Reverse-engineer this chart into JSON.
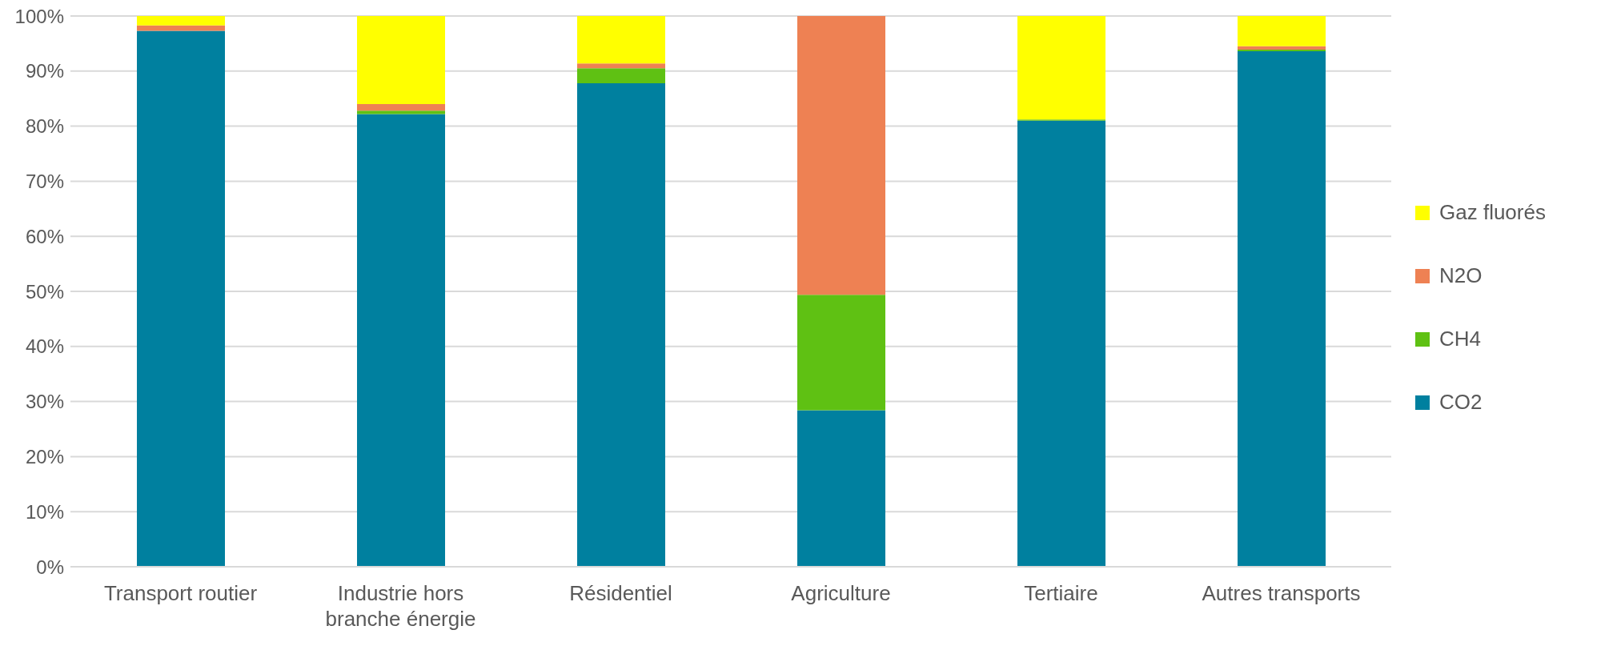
{
  "chart_data": {
    "type": "bar",
    "stacked": true,
    "categories": [
      "Transport routier",
      "Industrie hors branche énergie",
      "Résidentiel",
      "Agriculture",
      "Tertiaire",
      "Autres transports"
    ],
    "series": [
      {
        "name": "CO2",
        "color": "#00809f",
        "values": [
          97.3,
          82.2,
          87.8,
          28.4,
          81.0,
          93.6
        ]
      },
      {
        "name": "CH4",
        "color": "#5fc113",
        "values": [
          0,
          0.6,
          2.7,
          21.0,
          0.2,
          0.3
        ]
      },
      {
        "name": "N2O",
        "color": "#ee8153",
        "values": [
          1.0,
          1.2,
          0.9,
          50.6,
          0,
          0.6
        ]
      },
      {
        "name": "Gaz fluorés",
        "color": "#ffff00",
        "values": [
          1.7,
          16.0,
          8.6,
          0,
          18.8,
          5.5
        ]
      }
    ],
    "ylim": [
      0,
      100
    ],
    "yticks": [
      {
        "value": 0,
        "label": "0%"
      },
      {
        "value": 10,
        "label": "10%"
      },
      {
        "value": 20,
        "label": "20%"
      },
      {
        "value": 30,
        "label": "30%"
      },
      {
        "value": 40,
        "label": "40%"
      },
      {
        "value": 50,
        "label": "50%"
      },
      {
        "value": 60,
        "label": "60%"
      },
      {
        "value": 70,
        "label": "70%"
      },
      {
        "value": 80,
        "label": "80%"
      },
      {
        "value": 90,
        "label": "90%"
      },
      {
        "value": 100,
        "label": "100%"
      }
    ],
    "grid": "y",
    "legend": "right"
  }
}
